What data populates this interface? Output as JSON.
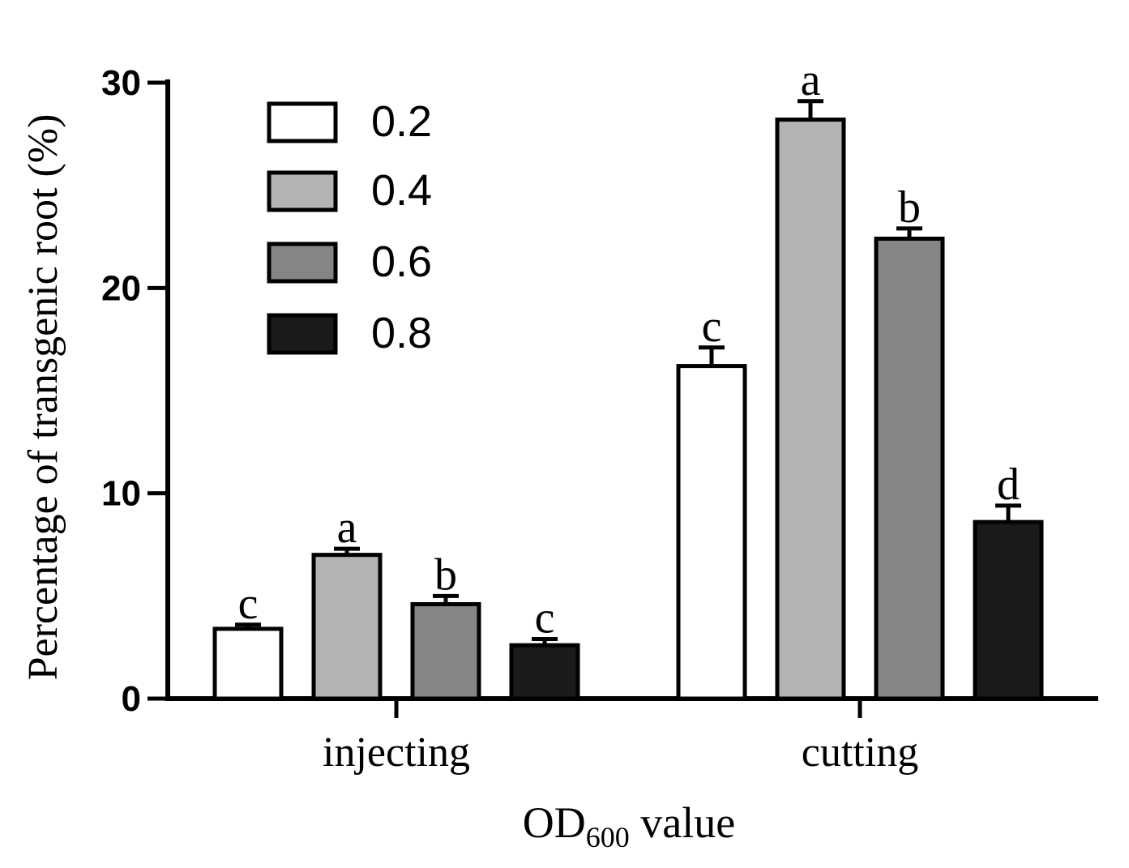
{
  "chart_data": {
    "type": "bar",
    "title": "",
    "xlabel": "OD",
    "xlabel_subscript": "600",
    "xlabel_suffix": " value",
    "ylabel": "Percentage of transgenic root (%)",
    "ylim": [
      0,
      30
    ],
    "yticks": [
      0,
      10,
      20,
      30
    ],
    "ytick_labels": [
      "0",
      "10",
      "20",
      "30"
    ],
    "categories": [
      "injecting",
      "cutting"
    ],
    "legend_position": "top-left",
    "series": [
      {
        "name": "0.2",
        "color": "#ffffff",
        "values": [
          3.4,
          16.2
        ],
        "errors": [
          0.2,
          0.9
        ],
        "letters": [
          "c",
          "c"
        ]
      },
      {
        "name": "0.4",
        "color": "#b3b3b3",
        "values": [
          7.0,
          28.2
        ],
        "errors": [
          0.3,
          0.9
        ],
        "letters": [
          "a",
          "a"
        ]
      },
      {
        "name": "0.6",
        "color": "#858585",
        "values": [
          4.6,
          22.4
        ],
        "errors": [
          0.4,
          0.5
        ],
        "letters": [
          "b",
          "b"
        ]
      },
      {
        "name": "0.8",
        "color": "#1a1a1a",
        "values": [
          2.6,
          8.6
        ],
        "errors": [
          0.3,
          0.8
        ],
        "letters": [
          "c",
          "d"
        ]
      }
    ]
  }
}
